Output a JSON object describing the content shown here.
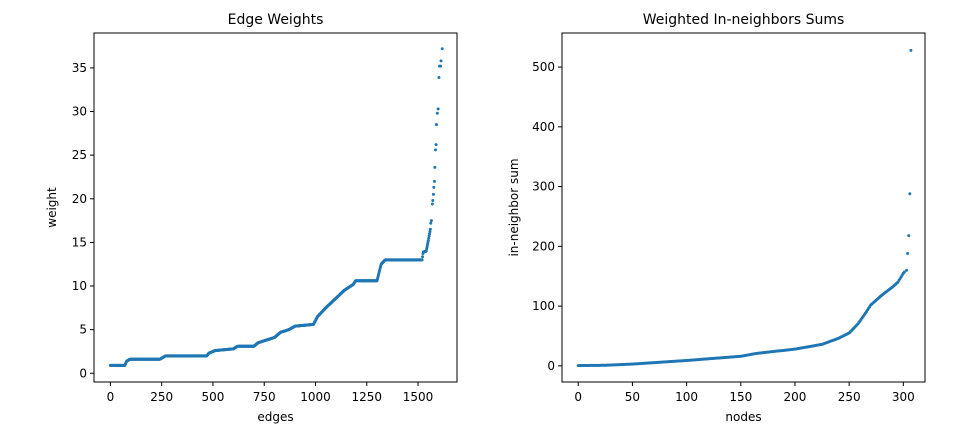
{
  "chart_data": [
    {
      "type": "scatter",
      "title": "Edge Weights",
      "xlabel": "edges",
      "ylabel": "weight",
      "xlim": [
        -80,
        1690
      ],
      "ylim": [
        -1.0,
        39.0
      ],
      "xticks": [
        0,
        250,
        500,
        750,
        1000,
        1250,
        1500
      ],
      "yticks": [
        0,
        5,
        10,
        15,
        20,
        25,
        30,
        35
      ],
      "grid": false,
      "color": "#1f77b4",
      "series": [
        {
          "profile": [
            [
              0,
              0.9
            ],
            [
              70,
              0.9
            ],
            [
              80,
              1.4
            ],
            [
              95,
              1.6
            ],
            [
              240,
              1.6
            ],
            [
              255,
              1.8
            ],
            [
              270,
              2.0
            ],
            [
              470,
              2.0
            ],
            [
              480,
              2.3
            ],
            [
              510,
              2.6
            ],
            [
              600,
              2.8
            ],
            [
              620,
              3.1
            ],
            [
              700,
              3.1
            ],
            [
              720,
              3.5
            ],
            [
              800,
              4.1
            ],
            [
              830,
              4.7
            ],
            [
              870,
              5.0
            ],
            [
              900,
              5.4
            ],
            [
              990,
              5.6
            ],
            [
              1010,
              6.5
            ],
            [
              1050,
              7.5
            ],
            [
              1100,
              8.6
            ],
            [
              1140,
              9.5
            ],
            [
              1185,
              10.2
            ],
            [
              1195,
              10.6
            ],
            [
              1300,
              10.6
            ],
            [
              1320,
              12.5
            ],
            [
              1340,
              13.0
            ],
            [
              1520,
              13.0
            ],
            [
              1525,
              13.9
            ],
            [
              1540,
              14.0
            ],
            [
              1550,
              15.2
            ],
            [
              1560,
              16.5
            ]
          ],
          "extra_points": [
            [
              1562,
              17.2
            ],
            [
              1565,
              17.5
            ],
            [
              1570,
              19.4
            ],
            [
              1572,
              19.8
            ],
            [
              1575,
              20.5
            ],
            [
              1577,
              21.3
            ],
            [
              1580,
              22.0
            ],
            [
              1582,
              23.6
            ],
            [
              1585,
              25.6
            ],
            [
              1588,
              26.2
            ],
            [
              1590,
              28.5
            ],
            [
              1594,
              29.8
            ],
            [
              1598,
              30.3
            ],
            [
              1602,
              33.9
            ],
            [
              1605,
              35.2
            ],
            [
              1610,
              35.2
            ],
            [
              1612,
              35.8
            ],
            [
              1618,
              37.2
            ]
          ]
        }
      ]
    },
    {
      "type": "scatter",
      "title": "Weighted In-neighbors Sums",
      "xlabel": "nodes",
      "ylabel": "in-neighbor sum",
      "xlim": [
        -15,
        320
      ],
      "ylim": [
        -27,
        557
      ],
      "xticks": [
        0,
        50,
        100,
        150,
        200,
        250,
        300
      ],
      "yticks": [
        0,
        100,
        200,
        300,
        400,
        500
      ],
      "grid": false,
      "color": "#1f77b4",
      "series": [
        {
          "profile": [
            [
              0,
              0.5
            ],
            [
              25,
              1.0
            ],
            [
              50,
              3.0
            ],
            [
              75,
              6.0
            ],
            [
              100,
              9.0
            ],
            [
              125,
              12.5
            ],
            [
              150,
              16.0
            ],
            [
              165,
              21.0
            ],
            [
              180,
              24.0
            ],
            [
              200,
              28.0
            ],
            [
              225,
              36.0
            ],
            [
              240,
              46.0
            ],
            [
              250,
              55.0
            ],
            [
              258,
              70.0
            ],
            [
              265,
              88.0
            ],
            [
              270,
              102.0
            ],
            [
              280,
              118.0
            ],
            [
              290,
              132.0
            ],
            [
              295,
              140.0
            ],
            [
              300,
              155.0
            ]
          ],
          "extra_points": [
            [
              301,
              157
            ],
            [
              303,
              160
            ],
            [
              304,
              188
            ],
            [
              305,
              218
            ],
            [
              306,
              288
            ],
            [
              307,
              528
            ]
          ]
        }
      ]
    }
  ]
}
